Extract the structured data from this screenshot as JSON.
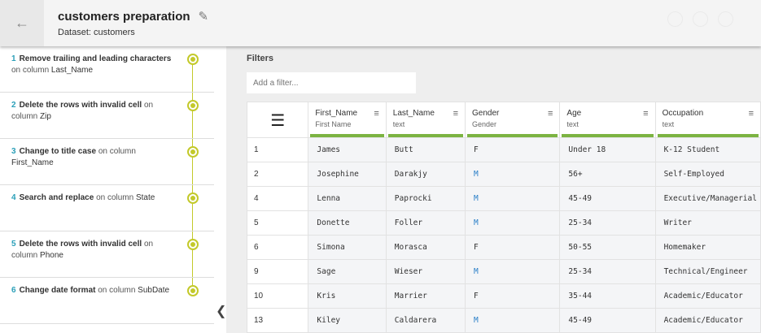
{
  "header": {
    "title": "customers preparation",
    "subtitle": "Dataset: customers",
    "back_icon": "arrow-left-icon",
    "edit_icon": "pencil-icon"
  },
  "steps": [
    {
      "num": "1",
      "action": "Remove trailing and leading characters",
      "on": "on column",
      "column": "Last_Name"
    },
    {
      "num": "2",
      "action": "Delete the rows with invalid cell",
      "on": "on column",
      "column": "Zip"
    },
    {
      "num": "3",
      "action": "Change to title case",
      "on": "on column",
      "column": "First_Name"
    },
    {
      "num": "4",
      "action": "Search and replace",
      "on": "on column",
      "column": "State"
    },
    {
      "num": "5",
      "action": "Delete the rows with invalid cell",
      "on": "on column",
      "column": "Phone"
    },
    {
      "num": "6",
      "action": "Change date format",
      "on": "on column",
      "column": "SubDate"
    }
  ],
  "filters": {
    "label": "Filters",
    "placeholder": "Add a filter..."
  },
  "table": {
    "columns": [
      {
        "name": "First_Name",
        "type": "First Name"
      },
      {
        "name": "Last_Name",
        "type": "text"
      },
      {
        "name": "Gender",
        "type": "Gender"
      },
      {
        "name": "Age",
        "type": "text"
      },
      {
        "name": "Occupation",
        "type": "text"
      }
    ],
    "rows": [
      [
        "1",
        "James",
        "Butt",
        "F",
        "Under 18",
        "K-12 Student"
      ],
      [
        "2",
        "Josephine",
        "Darakjy",
        "M",
        "56+",
        "Self-Employed"
      ],
      [
        "4",
        "Lenna",
        "Paprocki",
        "M",
        "45-49",
        "Executive/Managerial"
      ],
      [
        "5",
        "Donette",
        "Foller",
        "M",
        "25-34",
        "Writer"
      ],
      [
        "6",
        "Simona",
        "Morasca",
        "F",
        "50-55",
        "Homemaker"
      ],
      [
        "9",
        "Sage",
        "Wieser",
        "M",
        "25-34",
        "Technical/Engineer"
      ],
      [
        "10",
        "Kris",
        "Marrier",
        "F",
        "35-44",
        "Academic/Educator"
      ],
      [
        "13",
        "Kiley",
        "Caldarera",
        "M",
        "45-49",
        "Academic/Educator"
      ]
    ]
  },
  "colors": {
    "accent_green": "#7cb342",
    "timeline": "#c3c92a",
    "step_number": "#2a9fb8"
  }
}
